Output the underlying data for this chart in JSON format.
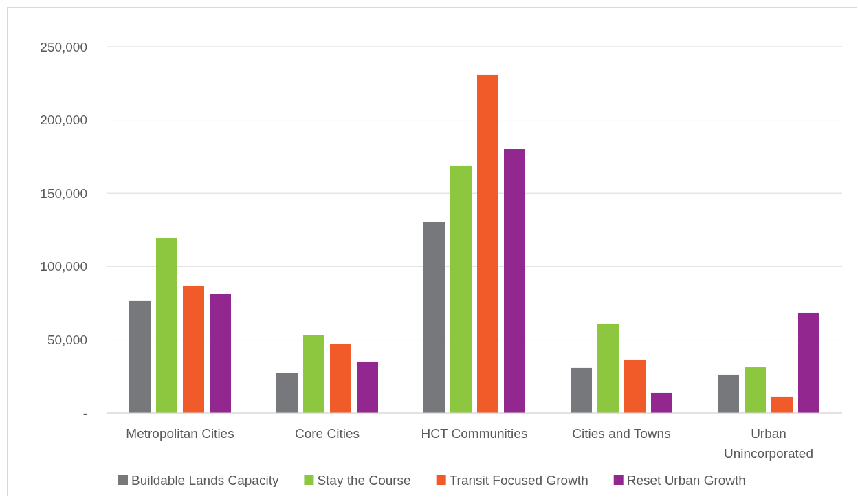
{
  "chart_data": {
    "type": "bar",
    "categories": [
      "Metropolitan Cities",
      "Core Cities",
      "HCT Communities",
      "Cities and Towns",
      "Urban Unincorporated"
    ],
    "series": [
      {
        "name": "Buildable Lands Capacity",
        "color": "#77787b",
        "values": [
          76500,
          27200,
          130400,
          31000,
          26300
        ]
      },
      {
        "name": "Stay the Course",
        "color": "#8dc63f",
        "values": [
          119600,
          53000,
          168900,
          61000,
          31400
        ]
      },
      {
        "name": "Transit Focused Growth",
        "color": "#f15a29",
        "values": [
          86800,
          46900,
          230800,
          36600,
          11300
        ]
      },
      {
        "name": "Reset Urban Growth",
        "color": "#92278f",
        "values": [
          81600,
          35200,
          180100,
          14100,
          68500
        ]
      }
    ],
    "ylim": [
      0,
      250000
    ],
    "yticks": [
      {
        "value": 0,
        "label": "-"
      },
      {
        "value": 50000,
        "label": "50,000"
      },
      {
        "value": 100000,
        "label": "100,000"
      },
      {
        "value": 150000,
        "label": "150,000"
      },
      {
        "value": 200000,
        "label": "200,000"
      },
      {
        "value": 250000,
        "label": "250,000"
      }
    ],
    "grid": "y",
    "legend": "bottom"
  }
}
